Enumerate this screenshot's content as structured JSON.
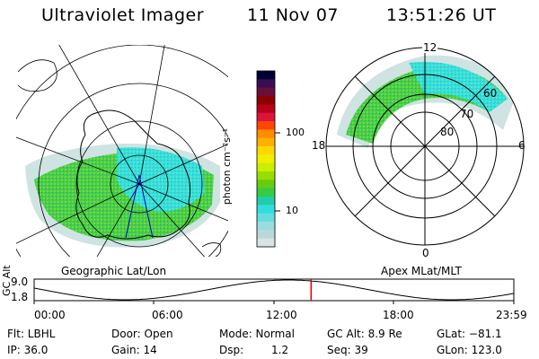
{
  "header": {
    "instrument": "Ultraviolet Imager",
    "date": "11 Nov 07",
    "time": "13:51:26 UT"
  },
  "colorbar": {
    "unit_label": "photon cm⁻²s⁻¹",
    "ticks": [
      "100",
      "10"
    ],
    "tick_values": [
      100,
      10
    ],
    "colors": [
      "#000033",
      "#3a0e55",
      "#6a0e3a",
      "#8b0000",
      "#b8001a",
      "#dc143c",
      "#ff4500",
      "#ff8c00",
      "#ffb000",
      "#ffd700",
      "#eeee00",
      "#ccee00",
      "#99dd00",
      "#66cc11",
      "#33cc44",
      "#22ccaa",
      "#33dddd",
      "#66dddd",
      "#99dddd",
      "#bbd8d8",
      "#d8e4e4"
    ]
  },
  "left_panel": {
    "label": "Geographic Lat/Lon"
  },
  "right_panel": {
    "label": "Apex MLat/MLT",
    "mlt_labels": {
      "top": "12",
      "left": "18",
      "right": "6",
      "bottom": "0"
    },
    "lat_rings": [
      "60",
      "70",
      "80"
    ]
  },
  "altitude_plot": {
    "ylabel": "GC Alt",
    "yticks": [
      "9.0",
      "1.8"
    ],
    "xticks": [
      "00:00",
      "06:00",
      "12:00",
      "18:00",
      "23:59"
    ],
    "marker_time": "13:51:26",
    "marker_color": "#dd0000"
  },
  "status": {
    "flt": "Flt: LBHL",
    "door": "Door: Open",
    "mode": "Mode: Normal",
    "gc_alt": "GC Alt: 8.9 Re",
    "glat": "GLat: −81.1",
    "ip": "IP: 36.0",
    "gain": "Gain: 14",
    "dsp_label": "Dsp:",
    "dsp_value": "1.2",
    "seq": "Seq: 39",
    "glon": "GLon: 123.0"
  }
}
